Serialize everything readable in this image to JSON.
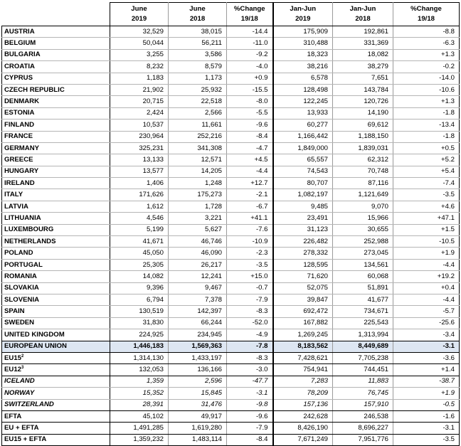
{
  "headers": [
    {
      "line1": "",
      "line2": ""
    },
    {
      "line1": "June",
      "line2": "2019"
    },
    {
      "line1": "June",
      "line2": "2018"
    },
    {
      "line1": "%Change",
      "line2": "19/18"
    },
    {
      "line1": "Jan-Jun",
      "line2": "2019"
    },
    {
      "line1": "Jan-Jun",
      "line2": "2018"
    },
    {
      "line1": "%Change",
      "line2": "19/18"
    }
  ],
  "countries": [
    [
      "AUSTRIA",
      "32,529",
      "38,015",
      "-14.4",
      "175,909",
      "192,861",
      "-8.8"
    ],
    [
      "BELGIUM",
      "50,044",
      "56,211",
      "-11.0",
      "310,488",
      "331,369",
      "-6.3"
    ],
    [
      "BULGARIA",
      "3,255",
      "3,586",
      "-9.2",
      "18,323",
      "18,082",
      "+1.3"
    ],
    [
      "CROATIA",
      "8,232",
      "8,579",
      "-4.0",
      "38,216",
      "38,279",
      "-0.2"
    ],
    [
      "CYPRUS",
      "1,183",
      "1,173",
      "+0.9",
      "6,578",
      "7,651",
      "-14.0"
    ],
    [
      "CZECH REPUBLIC",
      "21,902",
      "25,932",
      "-15.5",
      "128,498",
      "143,784",
      "-10.6"
    ],
    [
      "DENMARK",
      "20,715",
      "22,518",
      "-8.0",
      "122,245",
      "120,726",
      "+1.3"
    ],
    [
      "ESTONIA",
      "2,424",
      "2,566",
      "-5.5",
      "13,933",
      "14,190",
      "-1.8"
    ],
    [
      "FINLAND",
      "10,537",
      "11,661",
      "-9.6",
      "60,277",
      "69,612",
      "-13.4"
    ],
    [
      "FRANCE",
      "230,964",
      "252,216",
      "-8.4",
      "1,166,442",
      "1,188,150",
      "-1.8"
    ],
    [
      "GERMANY",
      "325,231",
      "341,308",
      "-4.7",
      "1,849,000",
      "1,839,031",
      "+0.5"
    ],
    [
      "GREECE",
      "13,133",
      "12,571",
      "+4.5",
      "65,557",
      "62,312",
      "+5.2"
    ],
    [
      "HUNGARY",
      "13,577",
      "14,205",
      "-4.4",
      "74,543",
      "70,748",
      "+5.4"
    ],
    [
      "IRELAND",
      "1,406",
      "1,248",
      "+12.7",
      "80,707",
      "87,116",
      "-7.4"
    ],
    [
      "ITALY",
      "171,626",
      "175,273",
      "-2.1",
      "1,082,197",
      "1,121,649",
      "-3.5"
    ],
    [
      "LATVIA",
      "1,612",
      "1,728",
      "-6.7",
      "9,485",
      "9,070",
      "+4.6"
    ],
    [
      "LITHUANIA",
      "4,546",
      "3,221",
      "+41.1",
      "23,491",
      "15,966",
      "+47.1"
    ],
    [
      "LUXEMBOURG",
      "5,199",
      "5,627",
      "-7.6",
      "31,123",
      "30,655",
      "+1.5"
    ],
    [
      "NETHERLANDS",
      "41,671",
      "46,746",
      "-10.9",
      "226,482",
      "252,988",
      "-10.5"
    ],
    [
      "POLAND",
      "45,050",
      "46,090",
      "-2.3",
      "278,332",
      "273,045",
      "+1.9"
    ],
    [
      "PORTUGAL",
      "25,305",
      "26,217",
      "-3.5",
      "128,595",
      "134,561",
      "-4.4"
    ],
    [
      "ROMANIA",
      "14,082",
      "12,241",
      "+15.0",
      "71,620",
      "60,068",
      "+19.2"
    ],
    [
      "SLOVAKIA",
      "9,396",
      "9,467",
      "-0.7",
      "52,075",
      "51,891",
      "+0.4"
    ],
    [
      "SLOVENIA",
      "6,794",
      "7,378",
      "-7.9",
      "39,847",
      "41,677",
      "-4.4"
    ],
    [
      "SPAIN",
      "130,519",
      "142,397",
      "-8.3",
      "692,472",
      "734,671",
      "-5.7"
    ],
    [
      "SWEDEN",
      "31,830",
      "66,244",
      "-52.0",
      "167,882",
      "225,543",
      "-25.6"
    ],
    [
      "UNITED KINGDOM",
      "224,925",
      "234,945",
      "-4.9",
      "1,269,245",
      "1,313,994",
      "-3.4"
    ]
  ],
  "eu": [
    "EUROPEAN UNION",
    "1,446,183",
    "1,569,363",
    "-7.8",
    "8,183,562",
    "8,449,689",
    "-3.1"
  ],
  "eu15": {
    "label": "EU15",
    "sup": "2",
    "values": [
      "1,314,130",
      "1,433,197",
      "-8.3",
      "7,428,621",
      "7,705,238",
      "-3.6"
    ]
  },
  "eu12": {
    "label": "EU12",
    "sup": "3",
    "values": [
      "132,053",
      "136,166",
      "-3.0",
      "754,941",
      "744,451",
      "+1.4"
    ]
  },
  "efta_members": [
    [
      "ICELAND",
      "1,359",
      "2,596",
      "-47.7",
      "7,283",
      "11,883",
      "-38.7"
    ],
    [
      "NORWAY",
      "15,352",
      "15,845",
      "-3.1",
      "78,209",
      "76,745",
      "+1.9"
    ],
    [
      "SWITZERLAND",
      "28,391",
      "31,476",
      "-9.8",
      "157,136",
      "157,910",
      "-0.5"
    ]
  ],
  "totals": [
    [
      "EFTA",
      "45,102",
      "49,917",
      "-9.6",
      "242,628",
      "246,538",
      "-1.6"
    ],
    [
      "EU + EFTA",
      "1,491,285",
      "1,619,280",
      "-7.9",
      "8,426,190",
      "8,696,227",
      "-3.1"
    ],
    [
      "EU15 + EFTA",
      "1,359,232",
      "1,483,114",
      "-8.4",
      "7,671,249",
      "7,951,776",
      "-3.5"
    ]
  ]
}
